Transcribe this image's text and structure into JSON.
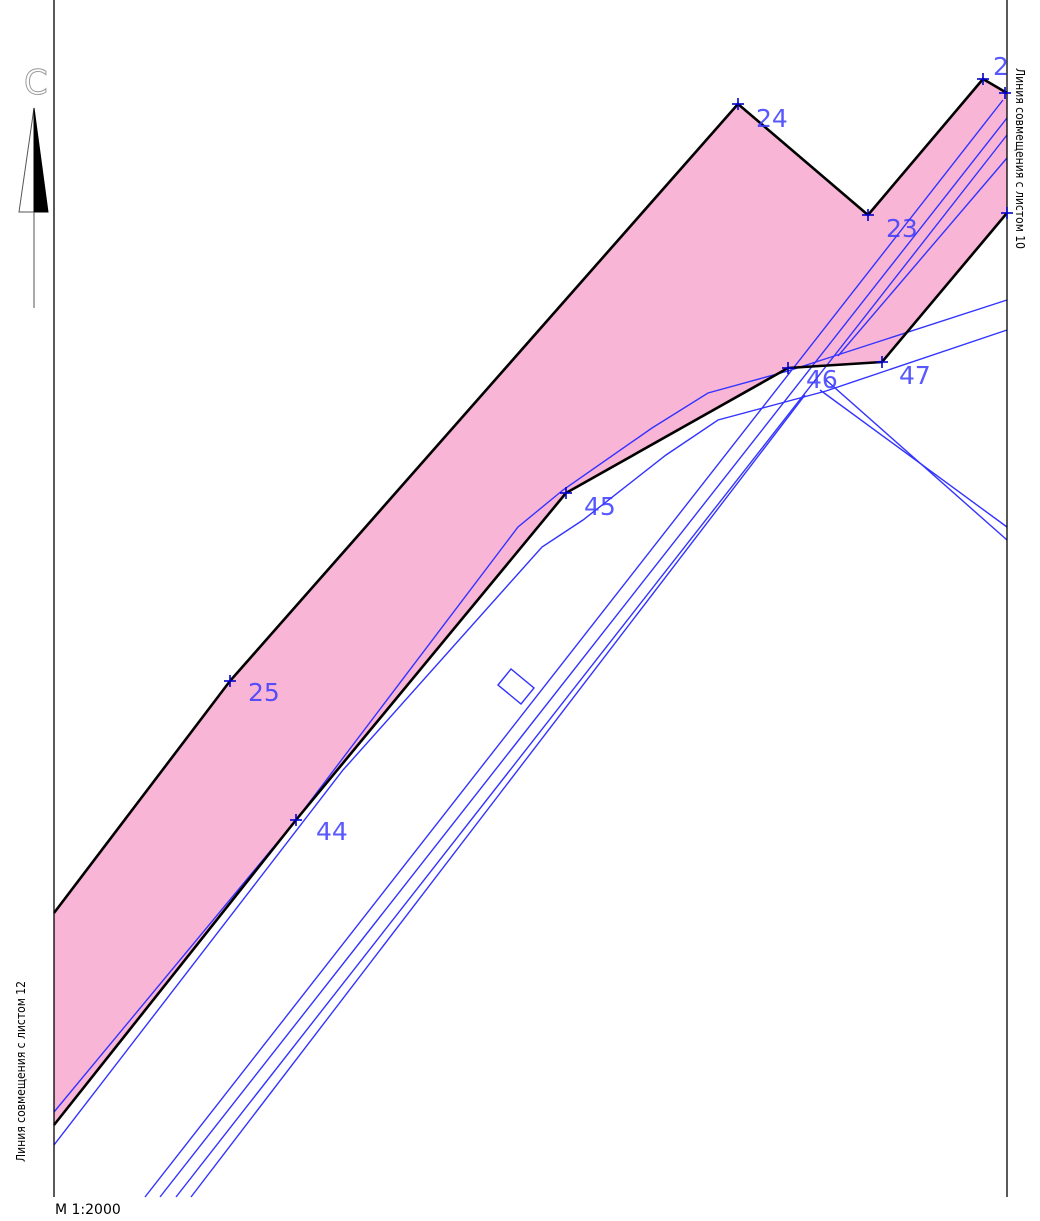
{
  "map": {
    "zone_fill_color": "#f9b5d6",
    "boundary_color": "#000000",
    "utility_line_color": "#3333ff",
    "point_label_color": "#3b3bff",
    "points": [
      {
        "id": "p24",
        "label": "24"
      },
      {
        "id": "p23",
        "label": "23"
      },
      {
        "id": "p25",
        "label": "25"
      },
      {
        "id": "p44",
        "label": "44"
      },
      {
        "id": "p45",
        "label": "45"
      },
      {
        "id": "p46",
        "label": "46"
      },
      {
        "id": "p47",
        "label": "47"
      },
      {
        "id": "p2",
        "label": "2"
      }
    ],
    "match_line_left": "Линия совмещения с листом 12",
    "match_line_right": "Линия совмещения с листом 10",
    "north_arrow": {
      "letter": "С",
      "icon": "north-arrow-icon"
    },
    "scale": "М 1:2000"
  }
}
